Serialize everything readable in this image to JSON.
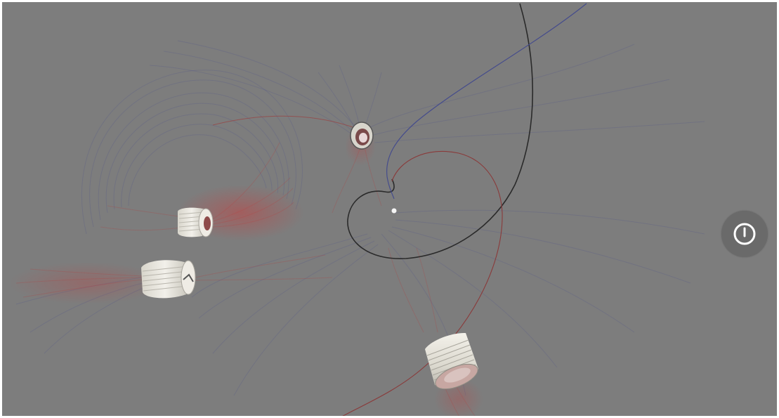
{
  "viewer": {
    "background_color": "#7d7d7d",
    "field_colors": {
      "positive": "#b04040",
      "negative": "#4a4f8c",
      "trajectory": "#2a2a2a"
    },
    "objects": [
      "coil-magnet",
      "coil-magnet",
      "coil-magnet",
      "coil-magnet",
      "particle"
    ]
  },
  "controls": {
    "power_button": {
      "icon": "power-icon",
      "color": "#6a6a6a"
    }
  }
}
